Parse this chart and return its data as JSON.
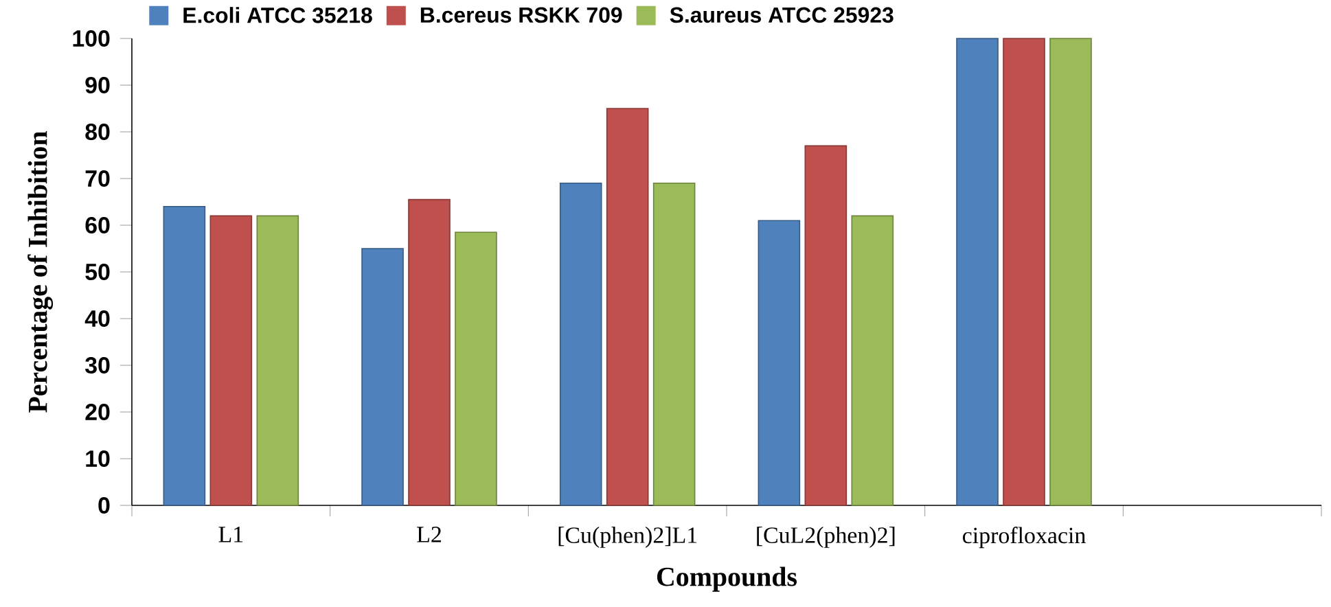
{
  "chart_data": {
    "type": "bar",
    "xlabel": "Compounds",
    "ylabel": "Percentage of Inhibition",
    "categories": [
      "L1",
      "L2",
      "[Cu(phen)2]L1",
      "[CuL2(phen)2]",
      "ciprofloxacin",
      null
    ],
    "series": [
      {
        "name": "E.coli ATCC 35218",
        "color": "#4f81bd",
        "values": [
          64,
          55,
          69,
          61,
          100,
          null
        ]
      },
      {
        "name": "B.cereus RSKK 709",
        "color": "#c0504d",
        "values": [
          62,
          65.5,
          85,
          77,
          100,
          null
        ]
      },
      {
        "name": "S.aureus ATCC 25923",
        "color": "#9bbb59",
        "values": [
          62,
          58.5,
          69,
          62,
          100,
          null
        ]
      }
    ],
    "ylim": [
      0,
      100
    ],
    "yticks": [
      0,
      10,
      20,
      30,
      40,
      50,
      60,
      70,
      80,
      90,
      100
    ],
    "legend": "top"
  }
}
